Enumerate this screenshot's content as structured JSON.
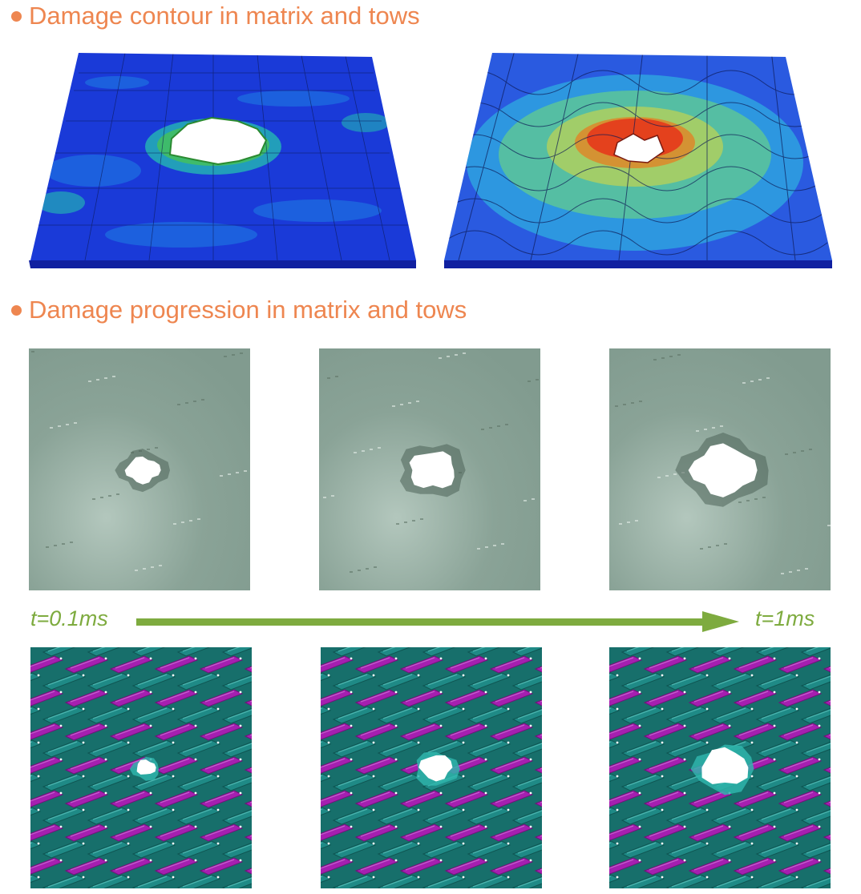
{
  "sections": {
    "contour_heading": "Damage contour in matrix and tows",
    "progression_heading": "Damage progression in matrix and tows"
  },
  "timeline": {
    "start_label": "t=0.1ms",
    "end_label": "t=1ms"
  },
  "colors": {
    "heading": "#ee8650",
    "timeline": "#7eab3f",
    "matrix_base": "#8aa397",
    "tow_purple": "#a51fb0",
    "tow_teal": "#1f8a86",
    "contour_low": "#1930d8",
    "contour_high": "#e6321a"
  },
  "progression": {
    "matrix_hole_scale": [
      0.55,
      0.8,
      1.05
    ],
    "tow_hole_scale": [
      0.45,
      0.75,
      1.1
    ]
  }
}
